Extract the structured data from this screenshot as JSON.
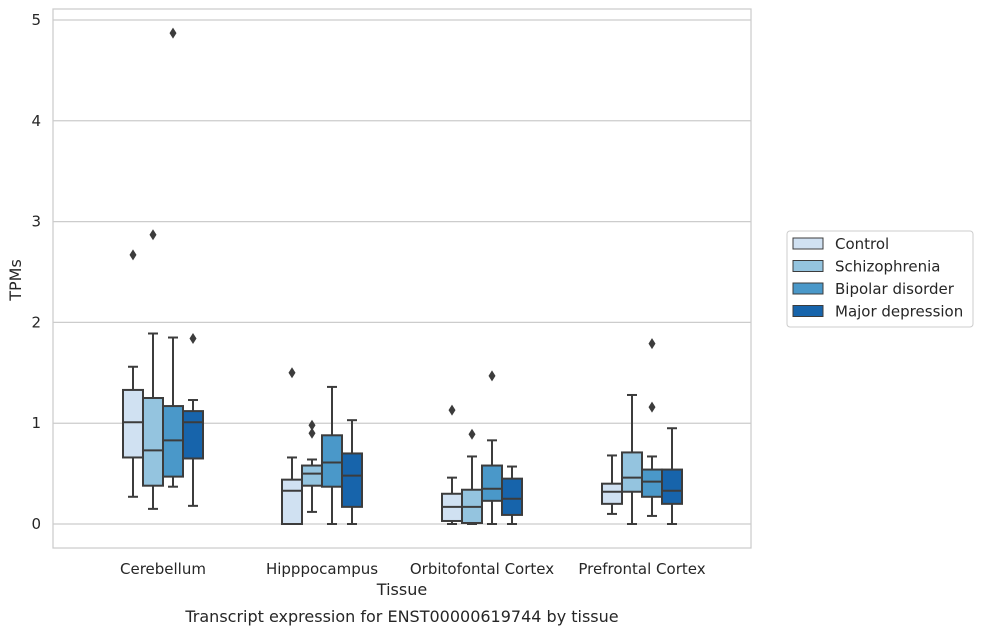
{
  "chart_data": {
    "type": "box",
    "title": "",
    "caption": "Transcript expression for ENST00000619744 by tissue",
    "xlabel": "Tissue",
    "ylabel": "TPMs",
    "ylim": [
      -0.23,
      5.12
    ],
    "yticks": [
      0,
      1,
      2,
      3,
      4,
      5
    ],
    "grid": "horizontal",
    "legend_position": "right-center",
    "categories": [
      "Cerebellum",
      "Hipppocampus",
      "Orbitofontal Cortex",
      "Prefrontal Cortex"
    ],
    "series": [
      {
        "name": "Control",
        "color": "#d0e1f2",
        "boxes": [
          {
            "whisker_low": 0.27,
            "q1": 0.66,
            "median": 1.01,
            "q3": 1.33,
            "whisker_high": 1.56,
            "outliers": [
              2.67
            ]
          },
          {
            "whisker_low": 0.0,
            "q1": 0.0,
            "median": 0.33,
            "q3": 0.44,
            "whisker_high": 0.66,
            "outliers": [
              1.5
            ]
          },
          {
            "whisker_low": 0.0,
            "q1": 0.03,
            "median": 0.17,
            "q3": 0.3,
            "whisker_high": 0.46,
            "outliers": [
              1.13
            ]
          },
          {
            "whisker_low": 0.1,
            "q1": 0.2,
            "median": 0.32,
            "q3": 0.4,
            "whisker_high": 0.68,
            "outliers": []
          }
        ]
      },
      {
        "name": "Schizophrenia",
        "color": "#94c4df",
        "boxes": [
          {
            "whisker_low": 0.15,
            "q1": 0.38,
            "median": 0.73,
            "q3": 1.25,
            "whisker_high": 1.89,
            "outliers": [
              2.87
            ]
          },
          {
            "whisker_low": 0.12,
            "q1": 0.38,
            "median": 0.5,
            "q3": 0.58,
            "whisker_high": 0.64,
            "outliers": [
              0.98,
              0.9
            ]
          },
          {
            "whisker_low": 0.0,
            "q1": 0.01,
            "median": 0.17,
            "q3": 0.34,
            "whisker_high": 0.67,
            "outliers": [
              0.89
            ]
          },
          {
            "whisker_low": 0.0,
            "q1": 0.32,
            "median": 0.46,
            "q3": 0.71,
            "whisker_high": 1.28,
            "outliers": []
          }
        ]
      },
      {
        "name": "Bipolar disorder",
        "color": "#4a98c9",
        "boxes": [
          {
            "whisker_low": 0.37,
            "q1": 0.47,
            "median": 0.83,
            "q3": 1.17,
            "whisker_high": 1.85,
            "outliers": [
              4.87
            ]
          },
          {
            "whisker_low": 0.0,
            "q1": 0.37,
            "median": 0.61,
            "q3": 0.88,
            "whisker_high": 1.36,
            "outliers": []
          },
          {
            "whisker_low": 0.0,
            "q1": 0.23,
            "median": 0.35,
            "q3": 0.58,
            "whisker_high": 0.83,
            "outliers": [
              1.47
            ]
          },
          {
            "whisker_low": 0.08,
            "q1": 0.27,
            "median": 0.42,
            "q3": 0.54,
            "whisker_high": 0.67,
            "outliers": [
              1.79,
              1.16
            ]
          }
        ]
      },
      {
        "name": "Major depression",
        "color": "#1764ab",
        "boxes": [
          {
            "whisker_low": 0.18,
            "q1": 0.65,
            "median": 1.01,
            "q3": 1.12,
            "whisker_high": 1.23,
            "outliers": [
              1.84
            ]
          },
          {
            "whisker_low": 0.0,
            "q1": 0.17,
            "median": 0.48,
            "q3": 0.7,
            "whisker_high": 1.03,
            "outliers": []
          },
          {
            "whisker_low": 0.0,
            "q1": 0.09,
            "median": 0.25,
            "q3": 0.45,
            "whisker_high": 0.57,
            "outliers": []
          },
          {
            "whisker_low": 0.0,
            "q1": 0.2,
            "median": 0.33,
            "q3": 0.54,
            "whisker_high": 0.95,
            "outliers": []
          }
        ]
      }
    ]
  }
}
